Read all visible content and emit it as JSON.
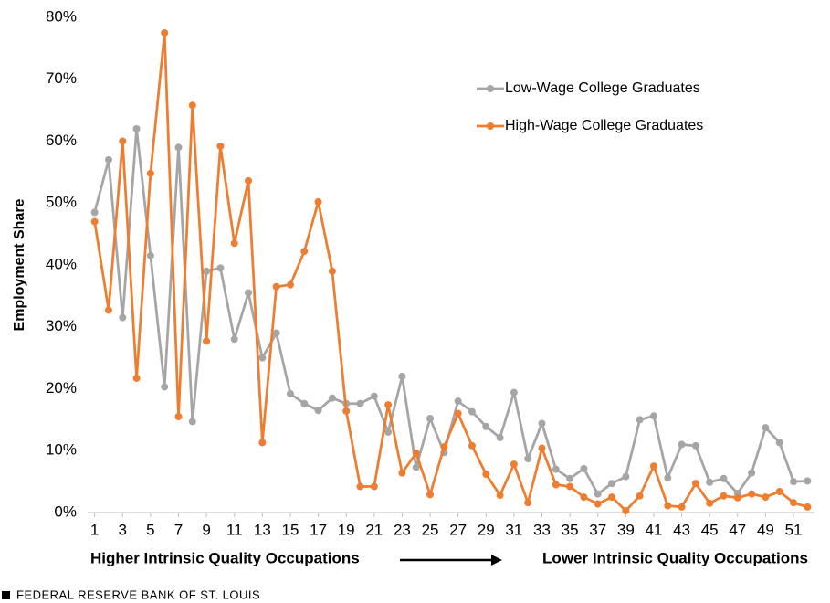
{
  "chart_data": {
    "type": "line",
    "y_label": "Employment Share",
    "annotations": [
      "Higher Intrinsic Quality Occupations",
      "Lower Intrinsic Quality Occupations"
    ],
    "x": [
      1,
      2,
      3,
      4,
      5,
      6,
      7,
      8,
      9,
      10,
      11,
      12,
      13,
      14,
      15,
      16,
      17,
      18,
      19,
      20,
      21,
      22,
      23,
      24,
      25,
      26,
      27,
      28,
      29,
      30,
      31,
      32,
      33,
      34,
      35,
      36,
      37,
      38,
      39,
      40,
      41,
      42,
      43,
      44,
      45,
      46,
      47,
      48,
      49,
      50,
      51,
      52
    ],
    "series": [
      {
        "name": "Low-Wage College Graduates",
        "color": "#a5a5a5",
        "values": [
          48.5,
          57,
          31.5,
          62,
          41.5,
          20.3,
          59,
          14.7,
          39,
          39.5,
          28,
          35.5,
          25,
          29,
          19.2,
          17.6,
          16.5,
          18.5,
          17.6,
          17.6,
          18.8,
          13,
          22,
          7.3,
          15.2,
          9.7,
          18,
          16.3,
          13.9,
          12.1,
          19.4,
          8.7,
          14.4,
          7,
          5.5,
          7.1,
          3,
          4.7,
          5.8,
          15,
          15.6,
          5.6,
          11,
          10.8,
          4.9,
          5.5,
          3.1,
          6.4,
          13.7,
          11.3,
          5,
          5.1
        ]
      },
      {
        "name": "High-Wage College Graduates",
        "color": "#ed7d31",
        "values": [
          47,
          32.7,
          60,
          21.7,
          54.8,
          77.5,
          15.5,
          65.8,
          27.7,
          59.2,
          43.5,
          53.6,
          11.3,
          36.5,
          36.8,
          42.2,
          50.2,
          39,
          16.4,
          4.2,
          4.2,
          17.4,
          6.4,
          9.6,
          2.9,
          10.6,
          16,
          10.8,
          6.2,
          2.8,
          7.8,
          1.6,
          10.4,
          4.5,
          4.2,
          2.5,
          1.4,
          2.5,
          0.3,
          2.7,
          7.5,
          1.1,
          0.9,
          4.7,
          1.5,
          2.7,
          2.4,
          3,
          2.5,
          3.4,
          1.6,
          0.9
        ]
      }
    ],
    "xlim": [
      0.5,
      52.5
    ],
    "xticks": [
      1,
      3,
      5,
      7,
      9,
      11,
      13,
      15,
      17,
      19,
      21,
      23,
      25,
      27,
      29,
      31,
      33,
      35,
      37,
      39,
      41,
      43,
      45,
      47,
      49,
      51
    ],
    "ylim": [
      0,
      80
    ],
    "yticks": [
      {
        "value": 0,
        "label": "0%"
      },
      {
        "value": 10,
        "label": "10%"
      },
      {
        "value": 20,
        "label": "20%"
      },
      {
        "value": 30,
        "label": "30%"
      },
      {
        "value": 40,
        "label": "40%"
      },
      {
        "value": 50,
        "label": "50%"
      },
      {
        "value": 60,
        "label": "60%"
      },
      {
        "value": 70,
        "label": "70%"
      },
      {
        "value": 80,
        "label": "80%"
      }
    ],
    "grid": false,
    "legend": "upper-right"
  },
  "footer": "FEDERAL RESERVE BANK OF ST. LOUIS"
}
